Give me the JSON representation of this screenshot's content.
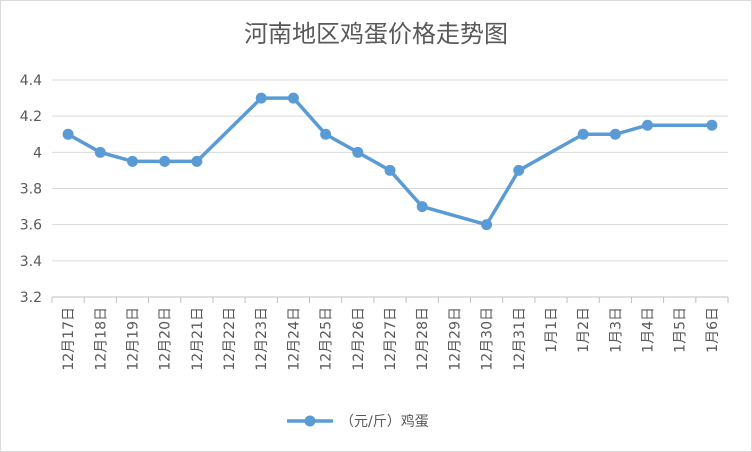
{
  "chart_data": {
    "type": "line",
    "title": "河南地区鸡蛋价格走势图",
    "categories": [
      "12月17日",
      "12月18日",
      "12月19日",
      "12月20日",
      "12月21日",
      "12月22日",
      "12月23日",
      "12月24日",
      "12月25日",
      "12月26日",
      "12月27日",
      "12月28日",
      "12月29日",
      "12月30日",
      "12月31日",
      "1月1日",
      "1月2日",
      "1月3日",
      "1月4日",
      "1月5日",
      "1月6日"
    ],
    "series": [
      {
        "name": "（元/斤）鸡蛋",
        "color": "#5b9bd5",
        "values": [
          4.1,
          4.0,
          3.95,
          3.95,
          3.95,
          null,
          4.3,
          4.3,
          4.1,
          4.0,
          3.9,
          3.7,
          null,
          3.6,
          3.9,
          null,
          4.1,
          4.1,
          4.15,
          null,
          4.15
        ]
      }
    ],
    "ylim": [
      3.2,
      4.4
    ],
    "yticks": [
      "3.2",
      "3.4",
      "3.6",
      "3.8",
      "4",
      "4.2",
      "4.4"
    ],
    "ytick_values": [
      3.2,
      3.4,
      3.6,
      3.8,
      4.0,
      4.2,
      4.4
    ],
    "grid": true,
    "legend": "bottom",
    "gaps": "connect"
  }
}
